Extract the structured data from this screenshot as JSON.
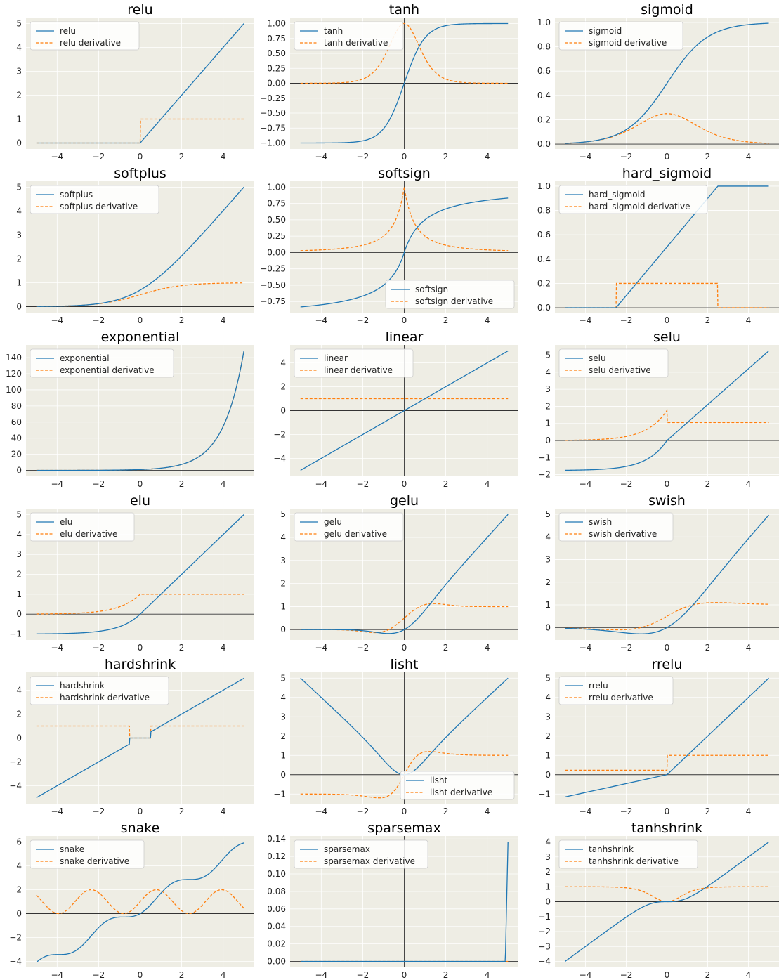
{
  "colors": {
    "background": "#EEEDE4",
    "grid": "#FFFFFF",
    "fn": "#1F77B4",
    "deriv": "#FF7F0E",
    "axis": "#333333"
  },
  "chart_data": [
    {
      "type": "line",
      "title": "relu",
      "func": "relu",
      "legend_loc": "upper-left",
      "xlim": [
        -5.5,
        5.5
      ],
      "ylim": [
        -0.25,
        5.25
      ],
      "xticks": [
        -4,
        -2,
        0,
        2,
        4
      ],
      "yticks": [
        0,
        1,
        2,
        3,
        4,
        5
      ],
      "series": [
        {
          "name": "relu",
          "style": "solid"
        },
        {
          "name": "relu derivative",
          "style": "dashed"
        }
      ]
    },
    {
      "type": "line",
      "title": "tanh",
      "func": "tanh",
      "legend_loc": "upper-left",
      "xlim": [
        -5.5,
        5.5
      ],
      "ylim": [
        -1.1,
        1.1
      ],
      "xticks": [
        -4,
        -2,
        0,
        2,
        4
      ],
      "yticks": [
        -1.0,
        -0.75,
        -0.5,
        -0.25,
        0.0,
        0.25,
        0.5,
        0.75,
        1.0
      ],
      "series": [
        {
          "name": "tanh",
          "style": "solid"
        },
        {
          "name": "tanh derivative",
          "style": "dashed"
        }
      ]
    },
    {
      "type": "line",
      "title": "sigmoid",
      "func": "sigmoid",
      "legend_loc": "upper-left",
      "xlim": [
        -5.5,
        5.5
      ],
      "ylim": [
        -0.04,
        1.04
      ],
      "xticks": [
        -4,
        -2,
        0,
        2,
        4
      ],
      "yticks": [
        0.0,
        0.2,
        0.4,
        0.6,
        0.8,
        1.0
      ],
      "series": [
        {
          "name": "sigmoid",
          "style": "solid"
        },
        {
          "name": "sigmoid derivative",
          "style": "dashed"
        }
      ]
    },
    {
      "type": "line",
      "title": "softplus",
      "func": "softplus",
      "legend_loc": "upper-left",
      "xlim": [
        -5.5,
        5.5
      ],
      "ylim": [
        -0.25,
        5.25
      ],
      "xticks": [
        -4,
        -2,
        0,
        2,
        4
      ],
      "yticks": [
        0,
        1,
        2,
        3,
        4,
        5
      ],
      "series": [
        {
          "name": "softplus",
          "style": "solid"
        },
        {
          "name": "softplus derivative",
          "style": "dashed"
        }
      ]
    },
    {
      "type": "line",
      "title": "softsign",
      "func": "softsign",
      "legend_loc": "lower-right",
      "xlim": [
        -5.5,
        5.5
      ],
      "ylim": [
        -0.92,
        1.09
      ],
      "xticks": [
        -4,
        -2,
        0,
        2,
        4
      ],
      "yticks": [
        -0.75,
        -0.5,
        -0.25,
        0.0,
        0.25,
        0.5,
        0.75,
        1.0
      ],
      "series": [
        {
          "name": "softsign",
          "style": "solid"
        },
        {
          "name": "softsign derivative",
          "style": "dashed"
        }
      ]
    },
    {
      "type": "line",
      "title": "hard_sigmoid",
      "func": "hard_sigmoid",
      "legend_loc": "upper-left",
      "xlim": [
        -5.5,
        5.5
      ],
      "ylim": [
        -0.04,
        1.04
      ],
      "xticks": [
        -4,
        -2,
        0,
        2,
        4
      ],
      "yticks": [
        0.0,
        0.2,
        0.4,
        0.6,
        0.8,
        1.0
      ],
      "series": [
        {
          "name": "hard_sigmoid",
          "style": "solid"
        },
        {
          "name": "hard_sigmoid derivative",
          "style": "dashed"
        }
      ]
    },
    {
      "type": "line",
      "title": "exponential",
      "func": "exponential",
      "legend_loc": "upper-left",
      "xlim": [
        -5.5,
        5.5
      ],
      "ylim": [
        -7.4,
        155.8
      ],
      "xticks": [
        -4,
        -2,
        0,
        2,
        4
      ],
      "yticks": [
        0,
        20,
        40,
        60,
        80,
        100,
        120,
        140
      ],
      "series": [
        {
          "name": "exponential",
          "style": "solid"
        },
        {
          "name": "exponential derivative",
          "style": "dashed"
        }
      ]
    },
    {
      "type": "line",
      "title": "linear",
      "func": "linear",
      "legend_loc": "upper-left",
      "xlim": [
        -5.5,
        5.5
      ],
      "ylim": [
        -5.5,
        5.5
      ],
      "xticks": [
        -4,
        -2,
        0,
        2,
        4
      ],
      "yticks": [
        -4,
        -2,
        0,
        2,
        4
      ],
      "series": [
        {
          "name": "linear",
          "style": "solid"
        },
        {
          "name": "linear derivative",
          "style": "dashed"
        }
      ]
    },
    {
      "type": "line",
      "title": "selu",
      "func": "selu",
      "legend_loc": "upper-left",
      "xlim": [
        -5.5,
        5.5
      ],
      "ylim": [
        -2.1,
        5.6
      ],
      "xticks": [
        -4,
        -2,
        0,
        2,
        4
      ],
      "yticks": [
        -2,
        -1,
        0,
        1,
        2,
        3,
        4,
        5
      ],
      "series": [
        {
          "name": "selu",
          "style": "solid"
        },
        {
          "name": "selu derivative",
          "style": "dashed"
        }
      ]
    },
    {
      "type": "line",
      "title": "elu",
      "func": "elu",
      "legend_loc": "upper-left",
      "xlim": [
        -5.5,
        5.5
      ],
      "ylim": [
        -1.3,
        5.3
      ],
      "xticks": [
        -4,
        -2,
        0,
        2,
        4
      ],
      "yticks": [
        -1,
        0,
        1,
        2,
        3,
        4,
        5
      ],
      "series": [
        {
          "name": "elu",
          "style": "solid"
        },
        {
          "name": "elu derivative",
          "style": "dashed"
        }
      ]
    },
    {
      "type": "line",
      "title": "gelu",
      "func": "gelu",
      "legend_loc": "upper-left",
      "xlim": [
        -5.5,
        5.5
      ],
      "ylim": [
        -0.45,
        5.25
      ],
      "xticks": [
        -4,
        -2,
        0,
        2,
        4
      ],
      "yticks": [
        0,
        1,
        2,
        3,
        4,
        5
      ],
      "series": [
        {
          "name": "gelu",
          "style": "solid"
        },
        {
          "name": "gelu derivative",
          "style": "dashed"
        }
      ]
    },
    {
      "type": "line",
      "title": "swish",
      "func": "swish",
      "legend_loc": "upper-left",
      "xlim": [
        -5.5,
        5.5
      ],
      "ylim": [
        -0.55,
        5.25
      ],
      "xticks": [
        -4,
        -2,
        0,
        2,
        4
      ],
      "yticks": [
        0,
        1,
        2,
        3,
        4,
        5
      ],
      "series": [
        {
          "name": "swish",
          "style": "solid"
        },
        {
          "name": "swish derivative",
          "style": "dashed"
        }
      ]
    },
    {
      "type": "line",
      "title": "hardshrink",
      "func": "hardshrink",
      "legend_loc": "upper-left",
      "xlim": [
        -5.5,
        5.5
      ],
      "ylim": [
        -5.5,
        5.5
      ],
      "xticks": [
        -4,
        -2,
        0,
        2,
        4
      ],
      "yticks": [
        -4,
        -2,
        0,
        2,
        4
      ],
      "series": [
        {
          "name": "hardshrink",
          "style": "solid"
        },
        {
          "name": "hardshrink derivative",
          "style": "dashed"
        }
      ]
    },
    {
      "type": "line",
      "title": "lisht",
      "func": "lisht",
      "legend_loc": "lower-right",
      "xlim": [
        -5.5,
        5.5
      ],
      "ylim": [
        -1.5,
        5.3
      ],
      "xticks": [
        -4,
        -2,
        0,
        2,
        4
      ],
      "yticks": [
        -1,
        0,
        1,
        2,
        3,
        4,
        5
      ],
      "series": [
        {
          "name": "lisht",
          "style": "solid"
        },
        {
          "name": "lisht derivative",
          "style": "dashed"
        }
      ]
    },
    {
      "type": "line",
      "title": "rrelu",
      "func": "rrelu",
      "legend_loc": "upper-left",
      "xlim": [
        -5.5,
        5.5
      ],
      "ylim": [
        -1.5,
        5.3
      ],
      "xticks": [
        -4,
        -2,
        0,
        2,
        4
      ],
      "yticks": [
        -1,
        0,
        1,
        2,
        3,
        4,
        5
      ],
      "series": [
        {
          "name": "rrelu",
          "style": "solid"
        },
        {
          "name": "rrelu derivative",
          "style": "dashed"
        }
      ]
    },
    {
      "type": "line",
      "title": "snake",
      "func": "snake",
      "legend_loc": "upper-left",
      "xlim": [
        -5.5,
        5.5
      ],
      "ylim": [
        -4.5,
        6.5
      ],
      "xticks": [
        -4,
        -2,
        0,
        2,
        4
      ],
      "yticks": [
        -4,
        -2,
        0,
        2,
        4,
        6
      ],
      "series": [
        {
          "name": "snake",
          "style": "solid"
        },
        {
          "name": "snake derivative",
          "style": "dashed"
        }
      ]
    },
    {
      "type": "line",
      "title": "sparsemax",
      "func": "sparsemax",
      "legend_loc": "upper-left",
      "xlim": [
        -5.5,
        5.5
      ],
      "ylim": [
        -0.0068,
        0.1434
      ],
      "xticks": [
        -4,
        -2,
        0,
        2,
        4
      ],
      "yticks": [
        0.0,
        0.02,
        0.04,
        0.06,
        0.08,
        0.1,
        0.12,
        0.14
      ],
      "series": [
        {
          "name": "sparsemax",
          "style": "solid"
        },
        {
          "name": "sparsemax derivative",
          "style": "dashed"
        }
      ]
    },
    {
      "type": "line",
      "title": "tanhshrink",
      "func": "tanhshrink",
      "legend_loc": "upper-left",
      "xlim": [
        -5.5,
        5.5
      ],
      "ylim": [
        -4.4,
        4.4
      ],
      "xticks": [
        -4,
        -2,
        0,
        2,
        4
      ],
      "yticks": [
        -4,
        -3,
        -2,
        -1,
        0,
        1,
        2,
        3,
        4
      ],
      "series": [
        {
          "name": "tanhshrink",
          "style": "solid"
        },
        {
          "name": "tanhshrink derivative",
          "style": "dashed"
        }
      ]
    }
  ]
}
